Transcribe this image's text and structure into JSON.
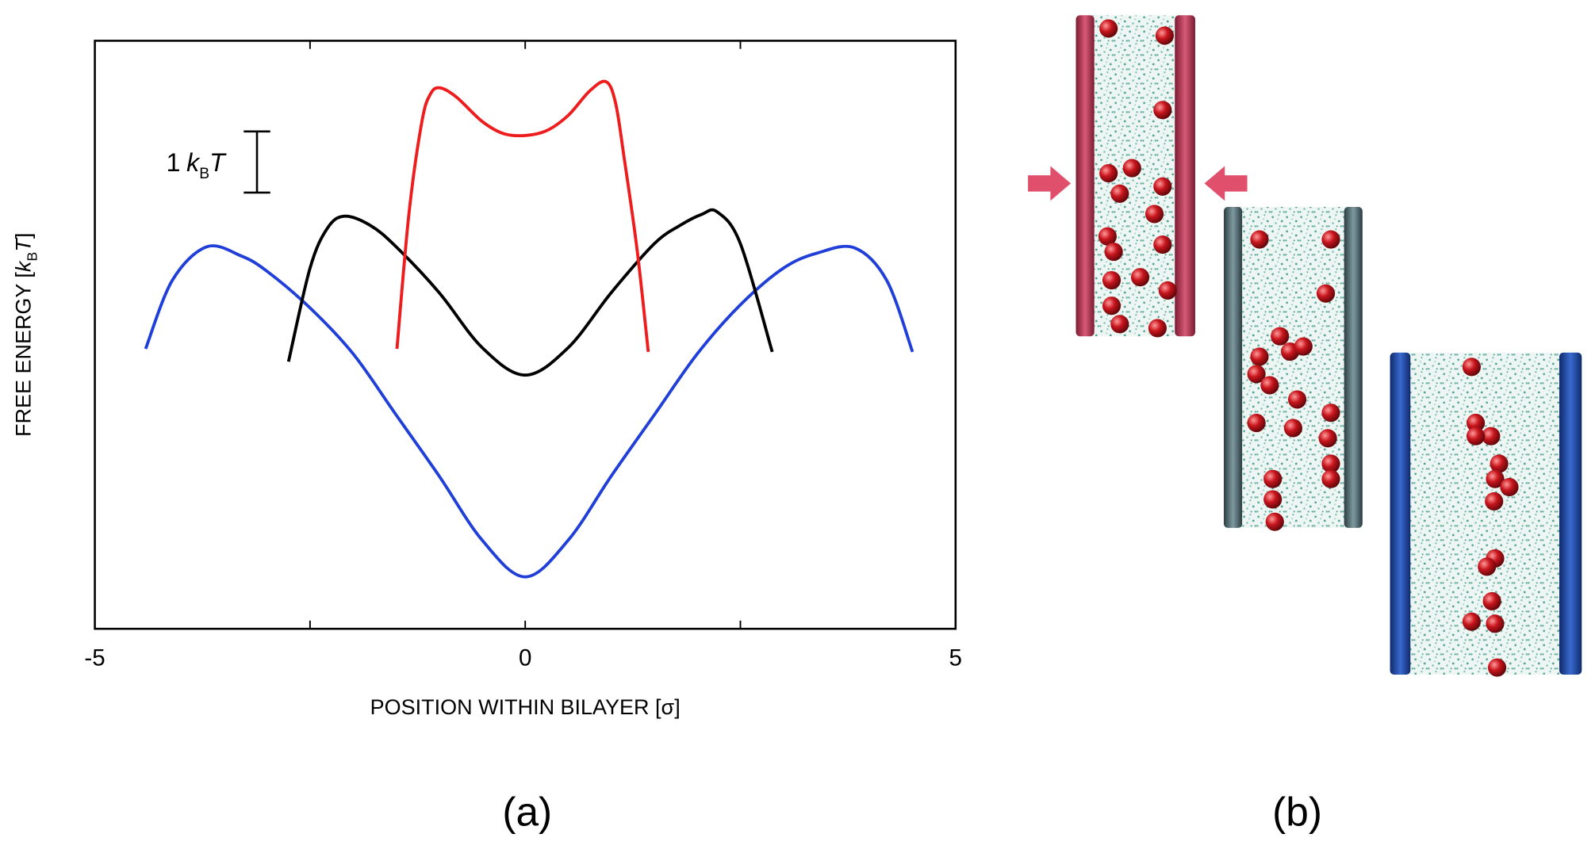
{
  "chart_data": {
    "type": "line",
    "xlabel": "POSITION WITHIN BILAYER [σ]",
    "ylabel_parts": [
      "FREE ENERGY [",
      "k",
      "B",
      "T",
      "]"
    ],
    "xlim": [
      -5,
      5
    ],
    "ylim": [
      0,
      9.62
    ],
    "xticks": [
      -5,
      0,
      5
    ],
    "xticks_minor": [
      -2.5,
      2.5
    ],
    "scale_bar": {
      "value": 1,
      "label_parts": [
        "1",
        "k",
        "B",
        "T"
      ]
    },
    "panel_labels": [
      "(a)",
      "(b)"
    ],
    "series": [
      {
        "color": "#1f3fd8",
        "x": [
          -4.41,
          -4.1,
          -3.7,
          -3.3,
          -3,
          -2.5,
          -2,
          -1.5,
          -1,
          -0.5,
          0,
          0.5,
          1,
          1.5,
          2,
          2.5,
          3,
          3.4,
          3.83,
          4.2,
          4.5
        ],
        "values": [
          4.58,
          5.7,
          6.25,
          6.1,
          5.85,
          5.25,
          4.5,
          3.5,
          2.5,
          1.45,
          0.85,
          1.45,
          2.5,
          3.5,
          4.5,
          5.3,
          5.9,
          6.15,
          6.23,
          5.7,
          4.53
        ]
      },
      {
        "color": "#000000",
        "x": [
          -2.75,
          -2.5,
          -2.3,
          -2.1,
          -1.8,
          -1.5,
          -1,
          -0.5,
          0,
          0.5,
          1,
          1.5,
          1.8,
          2.05,
          2.23,
          2.5,
          2.87
        ],
        "values": [
          4.37,
          5.9,
          6.55,
          6.75,
          6.6,
          6.25,
          5.5,
          4.6,
          4.15,
          4.6,
          5.5,
          6.3,
          6.6,
          6.78,
          6.82,
          6.3,
          4.53
        ]
      },
      {
        "color": "#ee1c1c",
        "x": [
          -1.49,
          -1.35,
          -1.2,
          -1.1,
          -0.99,
          -0.8,
          -0.5,
          -0.25,
          0,
          0.25,
          0.5,
          0.75,
          0.94,
          1.05,
          1.15,
          1.3,
          1.43
        ],
        "values": [
          4.58,
          6.8,
          8.3,
          8.75,
          8.85,
          8.7,
          8.3,
          8.1,
          8.07,
          8.15,
          8.4,
          8.8,
          8.95,
          8.6,
          7.7,
          6.2,
          4.53
        ]
      }
    ]
  }
}
